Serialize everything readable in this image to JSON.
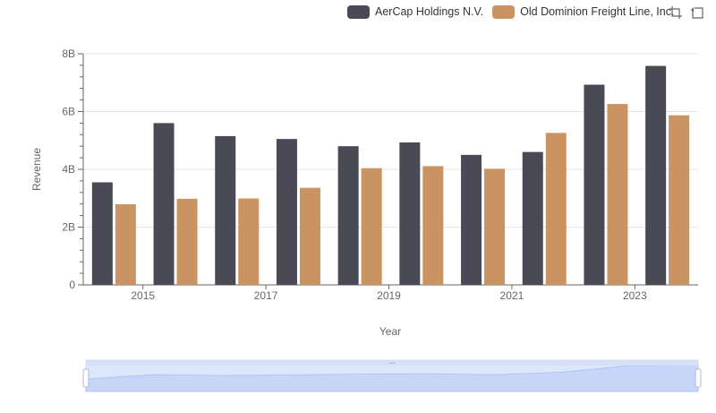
{
  "legend": {
    "series_a": "AerCap Holdings N.V.",
    "series_b": "Old Dominion Freight Line, Inc."
  },
  "toolbox": {
    "zoom_icon": "zoom-icon",
    "restore_icon": "restore-icon"
  },
  "colors": {
    "series_a": "#4a4a57",
    "series_b": "#c99362",
    "grid": "#e6e6e6",
    "datazoom": "#d3def8"
  },
  "chart_data": {
    "type": "bar",
    "title": "",
    "xlabel": "Year",
    "ylabel": "Revenue",
    "categories": [
      "2014",
      "2015",
      "2016",
      "2017",
      "2018",
      "2019",
      "2020",
      "2021",
      "2022",
      "2023"
    ],
    "x_tick_labels": [
      "2015",
      "2017",
      "2019",
      "2021",
      "2023"
    ],
    "y_tick_labels": [
      "0",
      "2B",
      "4B",
      "6B",
      "8B"
    ],
    "ylim": [
      0,
      8000000000
    ],
    "series": [
      {
        "name": "AerCap Holdings N.V.",
        "values": [
          3550000000,
          5600000000,
          5150000000,
          5050000000,
          4800000000,
          4930000000,
          4500000000,
          4600000000,
          6930000000,
          7580000000
        ]
      },
      {
        "name": "Old Dominion Freight Line, Inc.",
        "values": [
          2790000000,
          2980000000,
          2990000000,
          3360000000,
          4040000000,
          4110000000,
          4020000000,
          5260000000,
          6260000000,
          5870000000
        ]
      }
    ],
    "grid": true,
    "legend_position": "top-right",
    "datazoom": true
  }
}
